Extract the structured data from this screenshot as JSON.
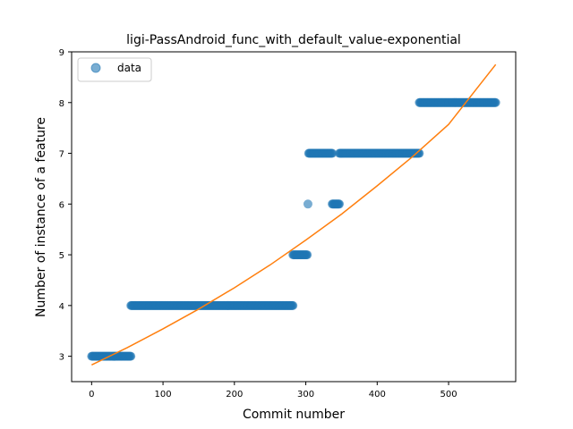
{
  "chart_data": {
    "type": "scatter",
    "title": "ligi-PassAndroid_func_with_default_value-exponential",
    "xlabel": "Commit number",
    "ylabel": "Number of instance of a feature",
    "xlim": [
      -28,
      594
    ],
    "ylim": [
      2.5,
      9.0
    ],
    "xticks": [
      0,
      100,
      200,
      300,
      400,
      500
    ],
    "yticks": [
      3,
      4,
      5,
      6,
      7,
      8,
      9
    ],
    "grid": false,
    "legend": {
      "placement": "top-left",
      "entries": [
        "data"
      ]
    },
    "colors": {
      "data": "#1f77b4",
      "fit": "#ff7f0e"
    },
    "series": [
      {
        "name": "data",
        "kind": "scatter",
        "segments": [
          {
            "x_start": 0,
            "x_end": 55,
            "y": 3
          },
          {
            "x_start": 55,
            "x_end": 282,
            "y": 4
          },
          {
            "x_start": 282,
            "x_end": 302,
            "y": 5
          },
          {
            "x_start": 303,
            "x_end": 303,
            "y": 6
          },
          {
            "x_start": 304,
            "x_end": 337,
            "y": 7
          },
          {
            "x_start": 337,
            "x_end": 347,
            "y": 6
          },
          {
            "x_start": 347,
            "x_end": 459,
            "y": 7
          },
          {
            "x_start": 459,
            "x_end": 566,
            "y": 8
          }
        ]
      },
      {
        "kind": "line",
        "function": "exponential",
        "x": [
          0,
          50,
          100,
          150,
          200,
          250,
          300,
          350,
          400,
          450,
          500,
          566
        ],
        "y": [
          2.83,
          3.17,
          3.54,
          3.93,
          4.35,
          4.8,
          5.29,
          5.8,
          6.36,
          6.94,
          7.57,
          8.75
        ]
      }
    ]
  }
}
